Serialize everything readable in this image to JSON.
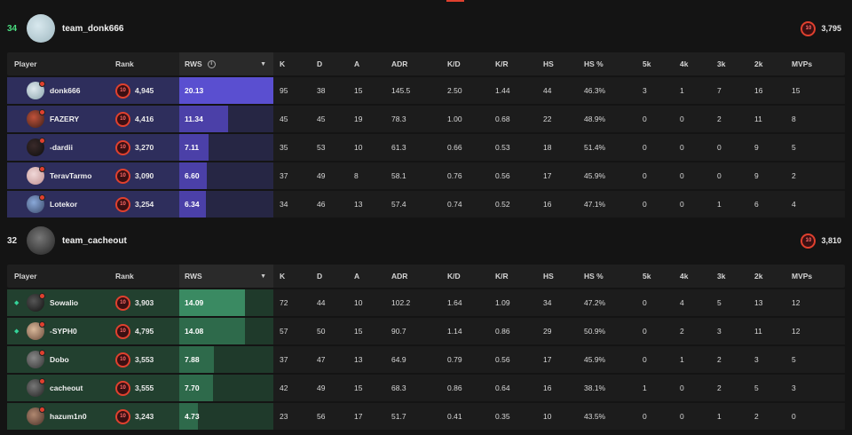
{
  "columns": {
    "player": "Player",
    "rank": "Rank",
    "rws": "RWS",
    "k": "K",
    "d": "D",
    "a": "A",
    "adr": "ADR",
    "kd": "K/D",
    "kr": "K/R",
    "hs": "HS",
    "hsp": "HS %",
    "k5": "5k",
    "k4": "4k",
    "k3": "3k",
    "k2": "2k",
    "mvps": "MVPs"
  },
  "rank_level_label": "10",
  "teams": [
    {
      "score": "34",
      "name": "team_donk666",
      "elo": "3,795",
      "players": [
        {
          "name": "donk666",
          "elo": "4,945",
          "rws": "20.13",
          "rws_fraction": 1.0,
          "k": "95",
          "d": "38",
          "a": "15",
          "adr": "145.5",
          "kd": "2.50",
          "kr": "1.44",
          "hs": "44",
          "hsp": "46.3%",
          "k5": "3",
          "k4": "1",
          "k3": "7",
          "k2": "16",
          "mvps": "15"
        },
        {
          "name": "FAZERY",
          "elo": "4,416",
          "rws": "11.34",
          "rws_fraction": 0.52,
          "k": "45",
          "d": "45",
          "a": "19",
          "adr": "78.3",
          "kd": "1.00",
          "kr": "0.68",
          "hs": "22",
          "hsp": "48.9%",
          "k5": "0",
          "k4": "0",
          "k3": "2",
          "k2": "11",
          "mvps": "8"
        },
        {
          "name": "-dardii",
          "elo": "3,270",
          "rws": "7.11",
          "rws_fraction": 0.31,
          "k": "35",
          "d": "53",
          "a": "10",
          "adr": "61.3",
          "kd": "0.66",
          "kr": "0.53",
          "hs": "18",
          "hsp": "51.4%",
          "k5": "0",
          "k4": "0",
          "k3": "0",
          "k2": "9",
          "mvps": "5"
        },
        {
          "name": "TeravTarmo",
          "elo": "3,090",
          "rws": "6.60",
          "rws_fraction": 0.29,
          "k": "37",
          "d": "49",
          "a": "8",
          "adr": "58.1",
          "kd": "0.76",
          "kr": "0.56",
          "hs": "17",
          "hsp": "45.9%",
          "k5": "0",
          "k4": "0",
          "k3": "0",
          "k2": "9",
          "mvps": "2"
        },
        {
          "name": "Lotekor",
          "elo": "3,254",
          "rws": "6.34",
          "rws_fraction": 0.28,
          "k": "34",
          "d": "46",
          "a": "13",
          "adr": "57.4",
          "kd": "0.74",
          "kr": "0.52",
          "hs": "16",
          "hsp": "47.1%",
          "k5": "0",
          "k4": "0",
          "k3": "1",
          "k2": "6",
          "mvps": "4"
        }
      ]
    },
    {
      "score": "32",
      "name": "team_cacheout",
      "elo": "3,810",
      "players": [
        {
          "name": "Sowalio",
          "elo": "3,903",
          "rws": "14.09",
          "rws_fraction": 0.7,
          "k": "72",
          "d": "44",
          "a": "10",
          "adr": "102.2",
          "kd": "1.64",
          "kr": "1.09",
          "hs": "34",
          "hsp": "47.2%",
          "k5": "0",
          "k4": "4",
          "k3": "5",
          "k2": "13",
          "mvps": "12",
          "marked": true
        },
        {
          "name": "-SYPH0",
          "elo": "4,795",
          "rws": "14.08",
          "rws_fraction": 0.7,
          "k": "57",
          "d": "50",
          "a": "15",
          "adr": "90.7",
          "kd": "1.14",
          "kr": "0.86",
          "hs": "29",
          "hsp": "50.9%",
          "k5": "0",
          "k4": "2",
          "k3": "3",
          "k2": "11",
          "mvps": "12",
          "marked": true
        },
        {
          "name": "Dobo",
          "elo": "3,553",
          "rws": "7.88",
          "rws_fraction": 0.37,
          "k": "37",
          "d": "47",
          "a": "13",
          "adr": "64.9",
          "kd": "0.79",
          "kr": "0.56",
          "hs": "17",
          "hsp": "45.9%",
          "k5": "0",
          "k4": "1",
          "k3": "2",
          "k2": "3",
          "mvps": "5"
        },
        {
          "name": "cacheout",
          "elo": "3,555",
          "rws": "7.70",
          "rws_fraction": 0.36,
          "k": "42",
          "d": "49",
          "a": "15",
          "adr": "68.3",
          "kd": "0.86",
          "kr": "0.64",
          "hs": "16",
          "hsp": "38.1%",
          "k5": "1",
          "k4": "0",
          "k3": "2",
          "k2": "5",
          "mvps": "3"
        },
        {
          "name": "hazum1n0",
          "elo": "3,243",
          "rws": "4.73",
          "rws_fraction": 0.2,
          "k": "23",
          "d": "56",
          "a": "17",
          "adr": "51.7",
          "kd": "0.41",
          "kr": "0.35",
          "hs": "10",
          "hsp": "43.5%",
          "k5": "0",
          "k4": "0",
          "k3": "1",
          "k2": "2",
          "mvps": "0"
        }
      ]
    }
  ],
  "colors": {
    "accent_red": "#e0402e",
    "team1_bar": "#4b40a8",
    "team2_bar": "#2e6a4b",
    "win_score": "#4ade80"
  }
}
